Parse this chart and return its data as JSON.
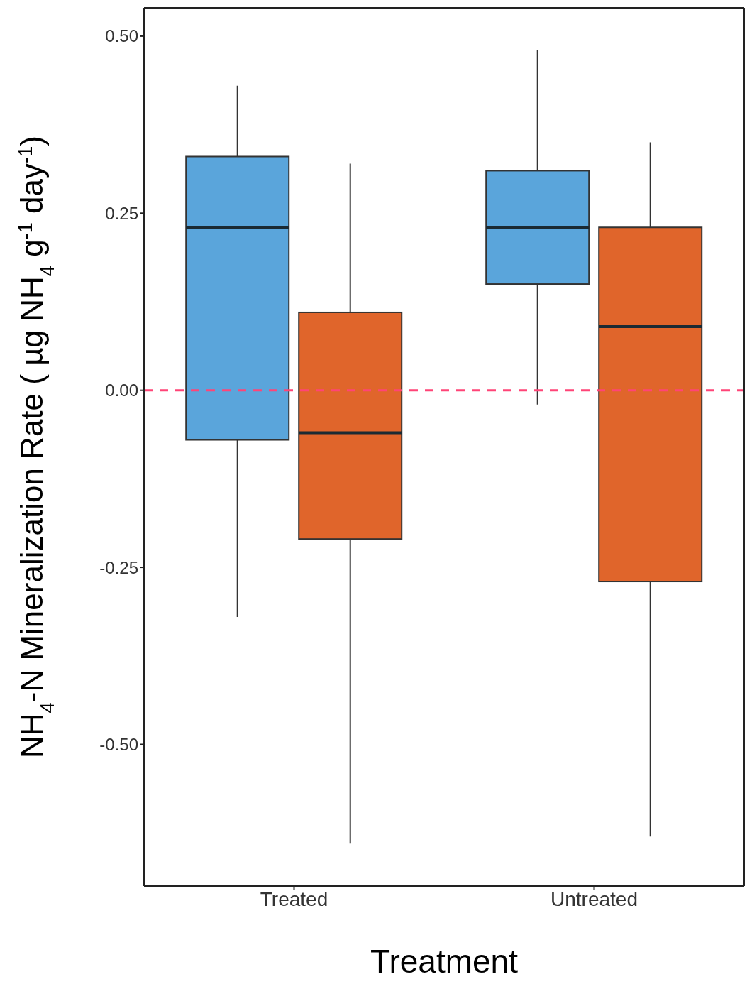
{
  "chart_data": {
    "type": "box",
    "xlabel": "Treatment",
    "ylabel": "NH$_{4}$-N Mineralization Rate ( µg NH$_{4}$ g$^{-1}$ day$^{-1}$)",
    "categories": [
      "Treated",
      "Untreated"
    ],
    "series": [
      {
        "color": "#5aa5db",
        "boxes": [
          {
            "low": -0.32,
            "q1": -0.07,
            "median": 0.23,
            "q3": 0.33,
            "high": 0.43
          },
          {
            "low": -0.02,
            "q1": 0.15,
            "median": 0.23,
            "q3": 0.31,
            "high": 0.48
          }
        ]
      },
      {
        "color": "#e0652b",
        "boxes": [
          {
            "low": -0.64,
            "q1": -0.21,
            "median": -0.06,
            "q3": 0.11,
            "high": 0.32
          },
          {
            "low": -0.63,
            "q1": -0.27,
            "median": 0.09,
            "q3": 0.23,
            "high": 0.35
          }
        ]
      }
    ],
    "ylim": [
      -0.7,
      0.54
    ],
    "yticks": [
      {
        "value": -0.5,
        "label": "-0.50"
      },
      {
        "value": -0.25,
        "label": "-0.25"
      },
      {
        "value": 0,
        "label": "0.00"
      },
      {
        "value": 0.25,
        "label": "0.25"
      },
      {
        "value": 0.5,
        "label": "0.50"
      }
    ],
    "ref_lines": [
      {
        "axis": "y",
        "value": 0,
        "color": "#ff4477",
        "line_style": "dashed"
      }
    ],
    "grid": false,
    "legend": false
  }
}
